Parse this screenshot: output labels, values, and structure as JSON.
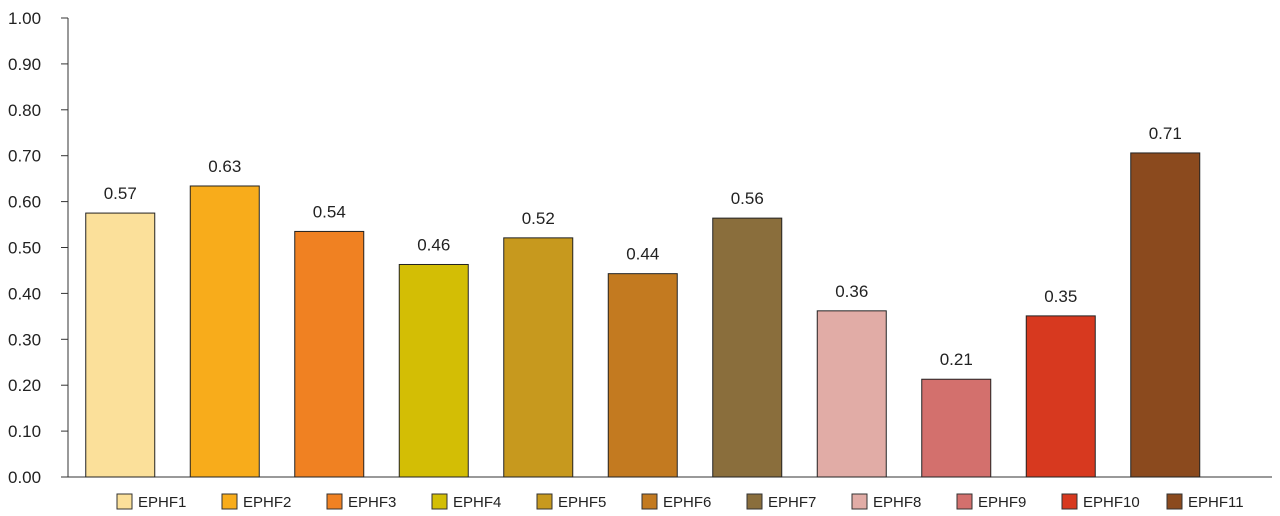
{
  "chart_data": {
    "type": "bar",
    "title": "",
    "xlabel": "",
    "ylabel": "",
    "ylim": [
      0,
      1
    ],
    "yticks": [
      "0.00",
      "0.10",
      "0.20",
      "0.30",
      "0.40",
      "0.50",
      "0.60",
      "0.70",
      "0.80",
      "0.90",
      "1.00"
    ],
    "grid": false,
    "legend_position": "bottom",
    "categories": [
      "EPHF1",
      "EPHF2",
      "EPHF3",
      "EPHF4",
      "EPHF5",
      "EPHF6",
      "EPHF7",
      "EPHF8",
      "EPHF9",
      "EPHF10",
      "EPHF11"
    ],
    "values": [
      0.575,
      0.634,
      0.535,
      0.463,
      0.521,
      0.443,
      0.564,
      0.362,
      0.213,
      0.351,
      0.706
    ],
    "value_labels": [
      "0.57",
      "0.63",
      "0.54",
      "0.46",
      "0.52",
      "0.44",
      "0.56",
      "0.36",
      "0.21",
      "0.35",
      "0.71"
    ],
    "colors": [
      "#FBE09A",
      "#F8AC1B",
      "#F08122",
      "#D3BE05",
      "#C7991E",
      "#C37A20",
      "#8A6E3C",
      "#E1ACA6",
      "#D3706D",
      "#D7391F",
      "#8B4A1E"
    ]
  }
}
